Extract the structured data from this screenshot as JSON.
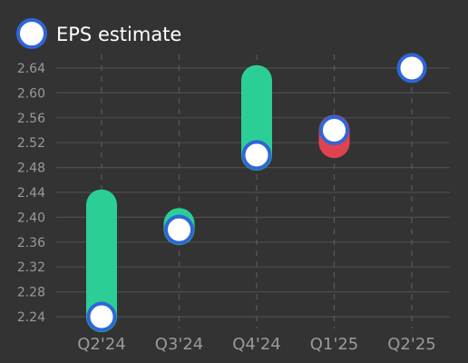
{
  "colors": {
    "background": "#333333",
    "grid": "#4d4d4d",
    "grid_vertical": "#5a5a5a",
    "tick_text": "#9a9a9a",
    "legend_text": "#ffffff",
    "beat": "#2bcf96",
    "miss": "#e0424f",
    "marker_fill": "#ffffff",
    "marker_stroke": "#2e66d6"
  },
  "chart_data": {
    "type": "scatter",
    "legend": [
      {
        "label": "EPS estimate",
        "marker": "circle-marker"
      }
    ],
    "legend_position": "top-left",
    "categories": [
      "Q2'24",
      "Q3'24",
      "Q4'24",
      "Q1'25",
      "Q2'25"
    ],
    "y_ticks": [
      "2.24",
      "2.28",
      "2.32",
      "2.36",
      "2.40",
      "2.44",
      "2.48",
      "2.52",
      "2.56",
      "2.60",
      "2.64"
    ],
    "ylim": [
      2.225,
      2.665
    ],
    "grid": {
      "horizontal": "solid",
      "vertical": "dashed"
    },
    "series": [
      {
        "name": "EPS estimate",
        "values": [
          2.24,
          2.38,
          2.5,
          2.54,
          2.64
        ]
      },
      {
        "values": [
          2.42,
          2.39,
          2.62,
          2.52,
          null
        ]
      }
    ]
  }
}
